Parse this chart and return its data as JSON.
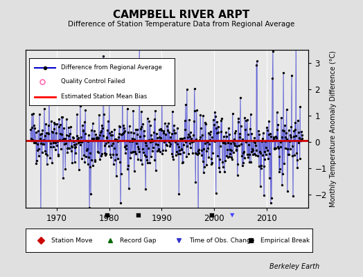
{
  "title": "CAMPBELL RIVER ARPT",
  "subtitle": "Difference of Station Temperature Data from Regional Average",
  "ylabel": "Monthly Temperature Anomaly Difference (°C)",
  "xlabel_credit": "Berkeley Earth",
  "xlim": [
    1964,
    2018
  ],
  "ylim": [
    -2.5,
    3.5
  ],
  "yticks": [
    -2,
    -1,
    0,
    1,
    2,
    3
  ],
  "xticks": [
    1970,
    1980,
    1990,
    2000,
    2010
  ],
  "bias_line_y": 0.05,
  "line_color": "#0000cc",
  "bias_color": "#cc0000",
  "marker_color": "#000000",
  "qc_color": "#ff69b4",
  "background_color": "#e0e0e0",
  "plot_background": "#e8e8e8",
  "seed": 42,
  "n_points": 620,
  "year_start": 1965.0,
  "year_end": 2016.8,
  "empirical_breaks": [
    1979.5,
    1985.5,
    1999.5
  ],
  "time_obs_change": [
    2003.5
  ],
  "figsize": [
    5.24,
    4.0
  ],
  "dpi": 100
}
